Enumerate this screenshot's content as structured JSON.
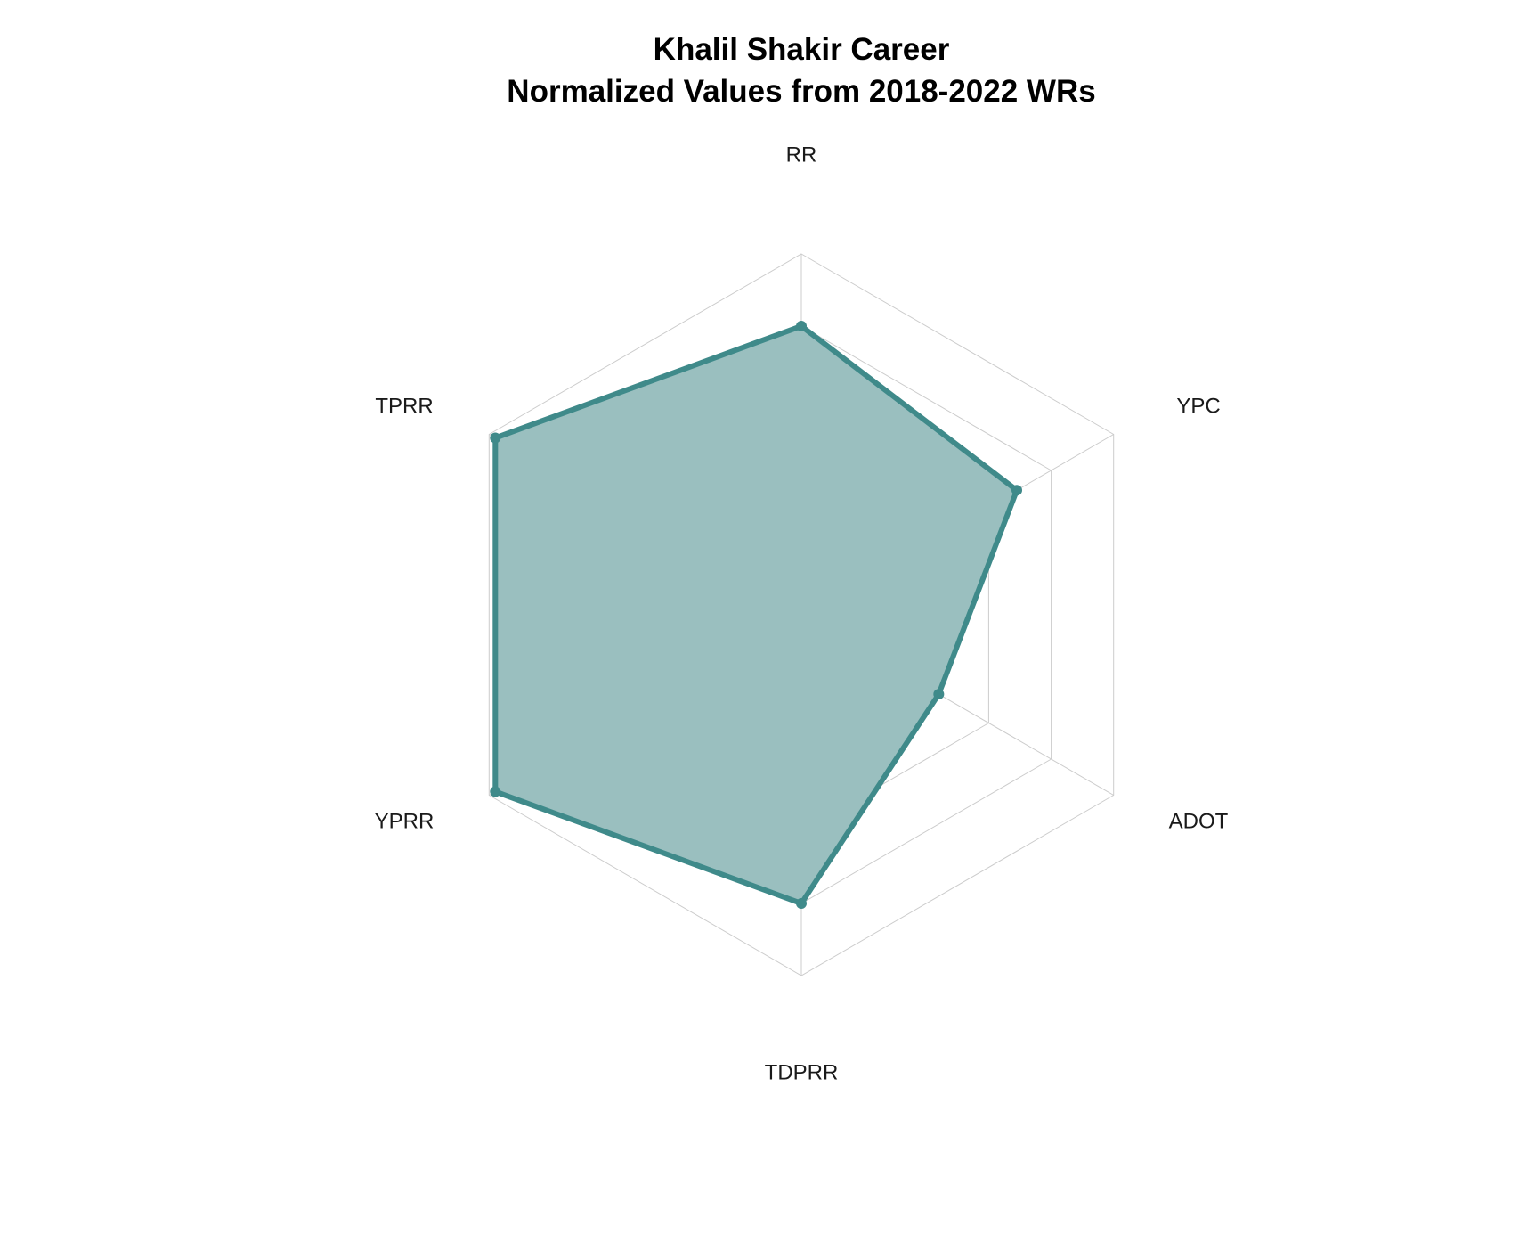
{
  "chart_data": {
    "type": "radar",
    "title_lines": [
      "Khalil Shakir Career",
      "Normalized Values from 2018-2022 WRs"
    ],
    "axes": [
      "RR",
      "YPC",
      "ADOT",
      "TDPRR",
      "YPRR",
      "TPRR"
    ],
    "range": [
      0,
      1
    ],
    "grid_levels": [
      0.2,
      0.4,
      0.6,
      0.8,
      1.0
    ],
    "series": [
      {
        "values": [
          0.8,
          0.69,
          0.44,
          0.8,
          0.98,
          0.98
        ]
      }
    ],
    "colors": {
      "line": "#3f8a8a",
      "fill": "#9abfbf",
      "grid": "#cccccc"
    }
  }
}
